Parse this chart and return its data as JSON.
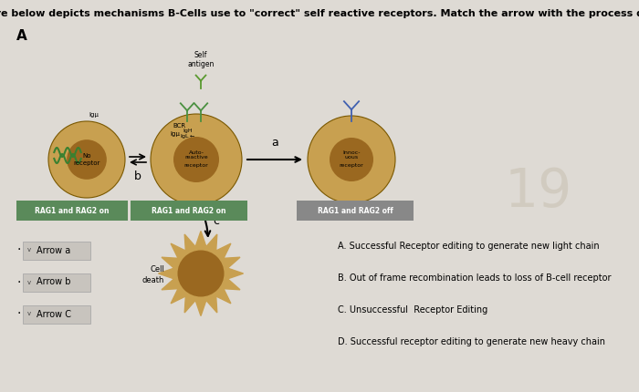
{
  "title": "The figure below depicts mechanisms B-Cells use to \"correct\" self reactive receptors. Match the arrow with the process depicted.",
  "title_fontsize": 8.0,
  "background_color": "#dedad4",
  "section_label": "A",
  "answer_options": [
    "A. Successful Receptor editing to generate new light chain",
    "B. Out of frame recombination leads to loss of B-cell receptor",
    "C. Unsuccessful  Receptor Editing",
    "D. Successful receptor editing to generate new heavy chain"
  ],
  "dropdown_labels": [
    "Arrow a",
    "Arrow b",
    "Arrow C"
  ],
  "number_watermark": "19",
  "cell_outer_color": "#c8a050",
  "cell_inner_color": "#9a6820",
  "rag_on_color": "#5a8a5a",
  "rag_off_color": "#888888"
}
